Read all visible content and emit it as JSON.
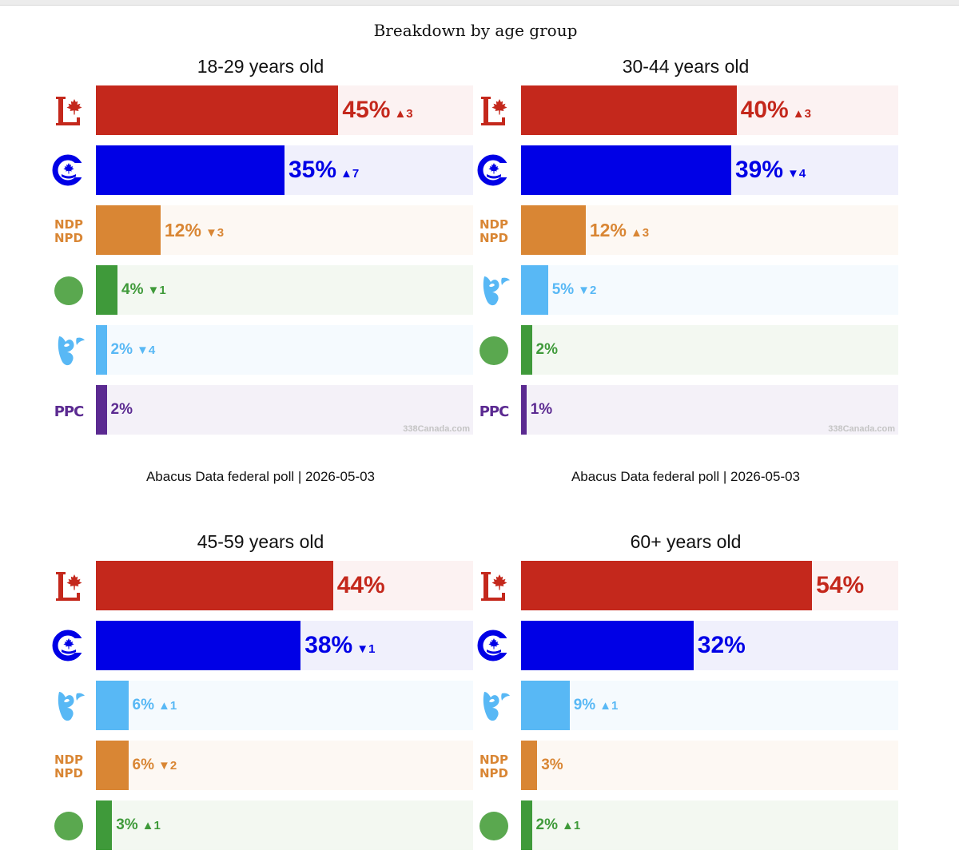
{
  "main_title": "Breakdown by age group",
  "watermark": "338Canada.com",
  "parties": {
    "LPC": {
      "icon": "liberal-logo-icon",
      "bar": "#c4281c",
      "bg": "#fcf2f2",
      "text": "#c4281c"
    },
    "CPC": {
      "icon": "conservative-logo-icon",
      "bar": "#0000e6",
      "bg": "#f0f0fc",
      "text": "#0000e6"
    },
    "NDP": {
      "icon": "ndp-logo-icon",
      "bar": "#d98634",
      "bg": "#fdf8f3",
      "text": "#d98634",
      "logo_line1": "NDP",
      "logo_line2": "NPD"
    },
    "GPC": {
      "icon": "green-logo-icon",
      "bar": "#3f9a3a",
      "bg": "#f3f8f1",
      "text": "#3f9a3a"
    },
    "BQ": {
      "icon": "bloc-logo-icon",
      "bar": "#58b8f5",
      "bg": "#f5fafe",
      "text": "#58b8f5"
    },
    "PPC": {
      "icon": "ppc-logo-icon",
      "bar": "#5b2a91",
      "bg": "#f4f1f8",
      "text": "#5b2a91",
      "logo_text": "PPC"
    }
  },
  "chart_data": [
    {
      "type": "bar",
      "title": "18-29 years old",
      "footer": "Abacus Data federal poll | 2026-05-03",
      "xlim": [
        0,
        70
      ],
      "bars": [
        {
          "party": "LPC",
          "value": 45,
          "label": "45%",
          "change": "3",
          "direction": "up"
        },
        {
          "party": "CPC",
          "value": 35,
          "label": "35%",
          "change": "7",
          "direction": "up"
        },
        {
          "party": "NDP",
          "value": 12,
          "label": "12%",
          "change": "3",
          "direction": "down"
        },
        {
          "party": "GPC",
          "value": 4,
          "label": "4%",
          "change": "1",
          "direction": "down"
        },
        {
          "party": "BQ",
          "value": 2,
          "label": "2%",
          "change": "4",
          "direction": "down"
        },
        {
          "party": "PPC",
          "value": 2,
          "label": "2%",
          "change": "",
          "direction": ""
        }
      ]
    },
    {
      "type": "bar",
      "title": "30-44 years old",
      "footer": "Abacus Data federal poll | 2026-05-03",
      "xlim": [
        0,
        70
      ],
      "bars": [
        {
          "party": "LPC",
          "value": 40,
          "label": "40%",
          "change": "3",
          "direction": "up"
        },
        {
          "party": "CPC",
          "value": 39,
          "label": "39%",
          "change": "4",
          "direction": "down"
        },
        {
          "party": "NDP",
          "value": 12,
          "label": "12%",
          "change": "3",
          "direction": "up"
        },
        {
          "party": "BQ",
          "value": 5,
          "label": "5%",
          "change": "2",
          "direction": "down"
        },
        {
          "party": "GPC",
          "value": 2,
          "label": "2%",
          "change": "",
          "direction": ""
        },
        {
          "party": "PPC",
          "value": 1,
          "label": "1%",
          "change": "",
          "direction": ""
        }
      ]
    },
    {
      "type": "bar",
      "title": "45-59 years old",
      "footer": "",
      "xlim": [
        0,
        70
      ],
      "bars": [
        {
          "party": "LPC",
          "value": 44,
          "label": "44%",
          "change": "",
          "direction": ""
        },
        {
          "party": "CPC",
          "value": 38,
          "label": "38%",
          "change": "1",
          "direction": "down"
        },
        {
          "party": "BQ",
          "value": 6,
          "label": "6%",
          "change": "1",
          "direction": "up"
        },
        {
          "party": "NDP",
          "value": 6,
          "label": "6%",
          "change": "2",
          "direction": "down"
        },
        {
          "party": "GPC",
          "value": 3,
          "label": "3%",
          "change": "1",
          "direction": "up"
        }
      ]
    },
    {
      "type": "bar",
      "title": "60+ years old",
      "footer": "",
      "xlim": [
        0,
        70
      ],
      "bars": [
        {
          "party": "LPC",
          "value": 54,
          "label": "54%",
          "change": "",
          "direction": ""
        },
        {
          "party": "CPC",
          "value": 32,
          "label": "32%",
          "change": "",
          "direction": ""
        },
        {
          "party": "BQ",
          "value": 9,
          "label": "9%",
          "change": "1",
          "direction": "up"
        },
        {
          "party": "NDP",
          "value": 3,
          "label": "3%",
          "change": "",
          "direction": ""
        },
        {
          "party": "GPC",
          "value": 2,
          "label": "2%",
          "change": "1",
          "direction": "up"
        }
      ]
    }
  ]
}
